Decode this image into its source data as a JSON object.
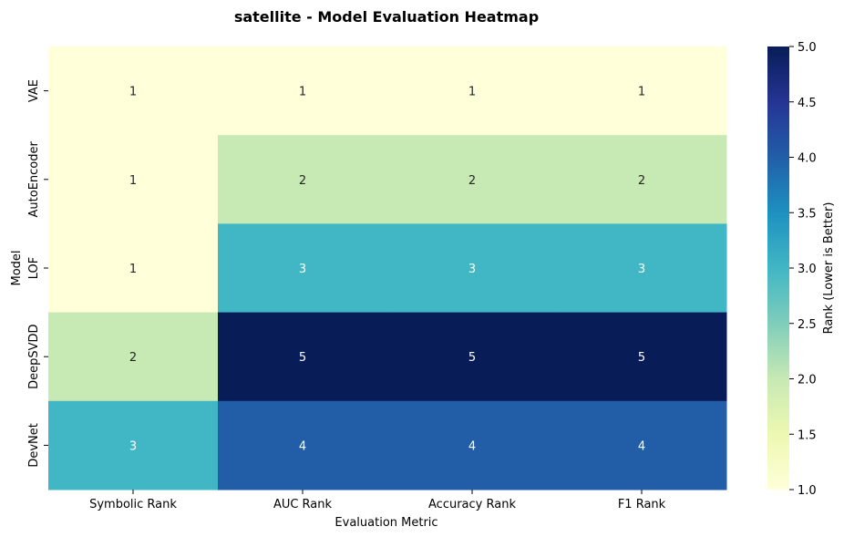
{
  "chart_data": {
    "type": "heatmap",
    "title": "satellite - Model Evaluation Heatmap",
    "xlabel": "Evaluation Metric",
    "ylabel": "Model",
    "columns": [
      "Symbolic Rank",
      "AUC Rank",
      "Accuracy Rank",
      "F1 Rank"
    ],
    "rows": [
      "VAE",
      "AutoEncoder",
      "LOF",
      "DeepSVDD",
      "DevNet"
    ],
    "values": [
      [
        1,
        1,
        1,
        1
      ],
      [
        1,
        2,
        2,
        2
      ],
      [
        1,
        3,
        3,
        3
      ],
      [
        2,
        5,
        5,
        5
      ],
      [
        3,
        4,
        4,
        4
      ]
    ],
    "colorbar": {
      "label": "Rank (Lower is Better)",
      "range": [
        1.0,
        5.0
      ],
      "ticks": [
        "1.0",
        "1.5",
        "2.0",
        "2.5",
        "3.0",
        "3.5",
        "4.0",
        "4.5",
        "5.0"
      ],
      "colormap": "YlGnBu"
    }
  }
}
